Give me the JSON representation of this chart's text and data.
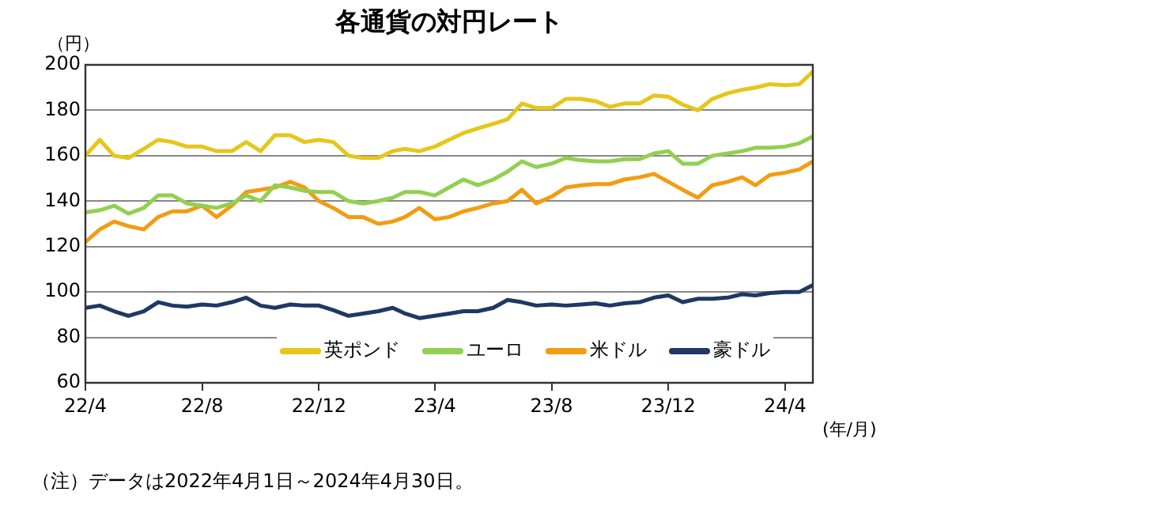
{
  "chart_data": {
    "type": "line",
    "title": "各通貨の対円レート",
    "ylabel": "（円）",
    "xlabel": "(年/月)",
    "x": [
      "2022-04-01",
      "2022-04-16",
      "2022-05-01",
      "2022-05-16",
      "2022-06-01",
      "2022-06-16",
      "2022-07-01",
      "2022-07-16",
      "2022-08-01",
      "2022-08-16",
      "2022-09-01",
      "2022-09-16",
      "2022-10-01",
      "2022-10-16",
      "2022-11-01",
      "2022-11-16",
      "2022-12-01",
      "2022-12-16",
      "2023-01-01",
      "2023-01-16",
      "2023-02-01",
      "2023-02-16",
      "2023-03-01",
      "2023-03-16",
      "2023-04-01",
      "2023-04-16",
      "2023-05-01",
      "2023-05-16",
      "2023-06-01",
      "2023-06-16",
      "2023-07-01",
      "2023-07-16",
      "2023-08-01",
      "2023-08-16",
      "2023-09-01",
      "2023-09-16",
      "2023-10-01",
      "2023-10-16",
      "2023-11-01",
      "2023-11-16",
      "2023-12-01",
      "2023-12-16",
      "2024-01-01",
      "2024-01-16",
      "2024-02-01",
      "2024-02-16",
      "2024-03-01",
      "2024-03-16",
      "2024-04-01",
      "2024-04-16",
      "2024-04-30"
    ],
    "series": [
      {
        "name": "英ポンド",
        "color": "#e6c619",
        "values": [
          160,
          167,
          160,
          159,
          163,
          167,
          166,
          164,
          164,
          162,
          162,
          166,
          162,
          169,
          169,
          166,
          167,
          166,
          160,
          159,
          159,
          162,
          163,
          162,
          164,
          167,
          170,
          172,
          174,
          176,
          183,
          181,
          181,
          185,
          185,
          184,
          181.5,
          183,
          183,
          186.5,
          186,
          182.5,
          180,
          185,
          187.5,
          189,
          190,
          191.5,
          191,
          191.5,
          197
        ]
      },
      {
        "name": "ユーロ",
        "color": "#92d050",
        "values": [
          135,
          136,
          138,
          134.5,
          137,
          142.5,
          142.5,
          139,
          138,
          137,
          139,
          142.5,
          140,
          147,
          146,
          144.5,
          144,
          144,
          140,
          139,
          140,
          141.5,
          144,
          144,
          142.5,
          146,
          149.5,
          147,
          149.5,
          153,
          157.5,
          155,
          156.5,
          159,
          158,
          157.5,
          157.5,
          158.5,
          158.5,
          161,
          162,
          156.5,
          156.5,
          160,
          161,
          162,
          163.5,
          163.5,
          164,
          165.5,
          168.5
        ]
      },
      {
        "name": "米ドル",
        "color": "#f39c12",
        "values": [
          122,
          127.5,
          131,
          129,
          127.5,
          133,
          135.5,
          135.5,
          138,
          133,
          138,
          144,
          145,
          146,
          148.5,
          146,
          140,
          137,
          133,
          133,
          130,
          131,
          133,
          137,
          132,
          133,
          135.5,
          137,
          139,
          140,
          145,
          139,
          142,
          146,
          147,
          147.5,
          147.5,
          149.5,
          150.5,
          152,
          148.5,
          145,
          141.5,
          147,
          148.5,
          150.5,
          147,
          151.5,
          152.5,
          154,
          157.5
        ]
      },
      {
        "name": "豪ドル",
        "color": "#1f3864",
        "values": [
          93,
          94,
          91.5,
          89.5,
          91.5,
          95.5,
          94,
          93.5,
          94.5,
          94,
          95.5,
          97.5,
          94,
          93,
          94.5,
          94,
          94,
          92,
          89.5,
          90.5,
          91.5,
          93,
          90.5,
          88.5,
          89.5,
          90.5,
          91.5,
          91.5,
          93,
          96.5,
          95.5,
          94,
          94.5,
          94,
          94.5,
          95,
          94,
          95,
          95.5,
          97.5,
          98.5,
          95.5,
          97,
          97,
          97.5,
          99,
          98.5,
          99.5,
          100,
          100,
          103
        ]
      }
    ],
    "xlim": [
      "2022-04-01",
      "2024-04-30"
    ],
    "xticks": [
      {
        "value": "2022-04-01",
        "label": "22/4"
      },
      {
        "value": "2022-08-01",
        "label": "22/8"
      },
      {
        "value": "2022-12-01",
        "label": "22/12"
      },
      {
        "value": "2023-04-01",
        "label": "23/4"
      },
      {
        "value": "2023-08-01",
        "label": "23/8"
      },
      {
        "value": "2023-12-01",
        "label": "23/12"
      },
      {
        "value": "2024-04-01",
        "label": "24/4"
      }
    ],
    "ylim": [
      60,
      200
    ],
    "yticks": [
      60,
      80,
      100,
      120,
      140,
      160,
      180,
      200
    ],
    "grid": "y",
    "legend": "bottom",
    "marker": "none",
    "line_style": "solid",
    "annotations": [
      "（注）データは2022年4月1日～2024年4月30日。"
    ]
  }
}
